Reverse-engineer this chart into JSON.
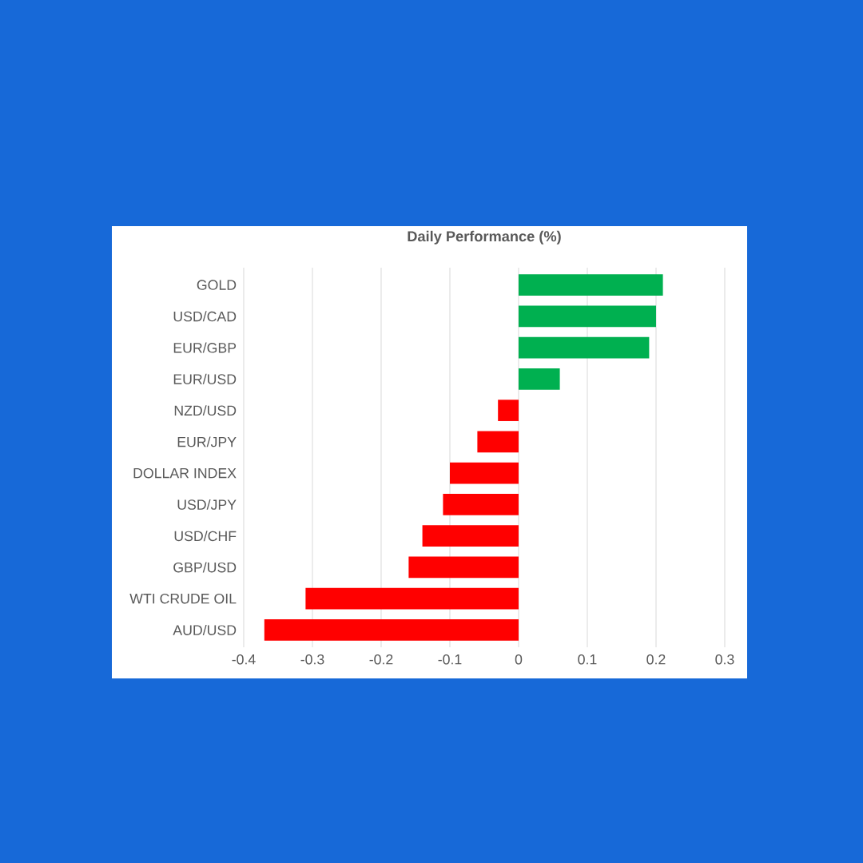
{
  "chart_data": {
    "type": "bar",
    "orientation": "horizontal",
    "title": "Daily Performance (%)",
    "categories": [
      "GOLD",
      "USD/CAD",
      "EUR/GBP",
      "EUR/USD",
      "NZD/USD",
      "EUR/JPY",
      "DOLLAR INDEX",
      "USD/JPY",
      "USD/CHF",
      "GBP/USD",
      "WTI CRUDE OIL",
      "AUD/USD"
    ],
    "values": [
      0.21,
      0.2,
      0.19,
      0.06,
      -0.03,
      -0.06,
      -0.1,
      -0.11,
      -0.14,
      -0.16,
      -0.31,
      -0.37
    ],
    "colors": [
      "#00b050",
      "#00b050",
      "#00b050",
      "#00b050",
      "#ff0000",
      "#ff0000",
      "#ff0000",
      "#ff0000",
      "#ff0000",
      "#ff0000",
      "#ff0000",
      "#ff0000"
    ],
    "xlim": [
      -0.4,
      0.3
    ],
    "xticks": [
      -0.4,
      -0.3,
      -0.2,
      -0.1,
      0,
      0.1,
      0.2,
      0.3
    ],
    "grid": "x"
  }
}
